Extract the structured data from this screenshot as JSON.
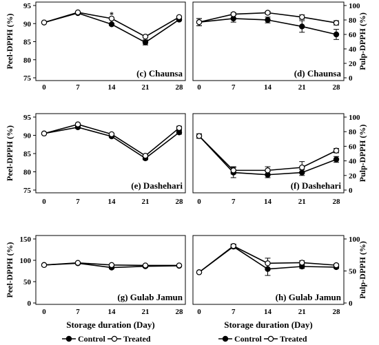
{
  "chart_data": [
    {
      "panel": "c",
      "type": "line",
      "label": "(c) Chaunsa",
      "ylabel": "Peel-DPPH (%)",
      "x": [
        0,
        7,
        14,
        21,
        28
      ],
      "ylim": [
        75,
        95
      ],
      "yticks": [
        75,
        80,
        85,
        90,
        95
      ],
      "series": [
        {
          "name": "Control",
          "values": [
            90.3,
            92.9,
            89.8,
            84.8,
            91.1
          ],
          "err": [
            0,
            0.2,
            0.3,
            0.7,
            0.3
          ]
        },
        {
          "name": "Treated",
          "values": [
            90.3,
            93.1,
            91.4,
            86.4,
            91.8
          ],
          "err": [
            0,
            0.2,
            0.2,
            0.3,
            0.3
          ]
        }
      ],
      "annotations": [
        {
          "text": "*",
          "x": 14,
          "y": 92.5
        }
      ]
    },
    {
      "panel": "d",
      "type": "line",
      "label": "(d) Chaunsa",
      "ylabel": "Pulp-DPPH (%)",
      "x": [
        0,
        7,
        14,
        21,
        28
      ],
      "ylim": [
        0,
        100
      ],
      "yticks": [
        0,
        20,
        40,
        60,
        80,
        100
      ],
      "series": [
        {
          "name": "Control",
          "values": [
            77,
            82,
            80,
            71,
            60
          ],
          "err": [
            5,
            5,
            4,
            8,
            7
          ]
        },
        {
          "name": "Treated",
          "values": [
            77,
            88,
            90,
            84,
            76
          ],
          "err": [
            5,
            2,
            2,
            3,
            3
          ]
        }
      ]
    },
    {
      "panel": "e",
      "type": "line",
      "label": "(e) Dashehari",
      "ylabel": "Peel-DPPH (%)",
      "x": [
        0,
        7,
        14,
        21,
        28
      ],
      "ylim": [
        75,
        95
      ],
      "yticks": [
        75,
        80,
        85,
        90,
        95
      ],
      "series": [
        {
          "name": "Control",
          "values": [
            90.5,
            92.2,
            89.7,
            83.7,
            90.8
          ],
          "err": [
            0,
            0.3,
            0.3,
            0.4,
            0.5
          ]
        },
        {
          "name": "Treated",
          "values": [
            90.5,
            93.0,
            90.3,
            84.4,
            92.0
          ],
          "err": [
            0,
            0.3,
            0.3,
            0.3,
            0.5
          ]
        }
      ]
    },
    {
      "panel": "f",
      "type": "line",
      "label": "(f) Dashehari",
      "ylabel": "Pulp-DPPH (%)",
      "x": [
        0,
        7,
        14,
        21,
        28
      ],
      "ylim": [
        0,
        100
      ],
      "yticks": [
        0,
        20,
        40,
        60,
        80,
        100
      ],
      "series": [
        {
          "name": "Control",
          "values": [
            74,
            24,
            21,
            24,
            42
          ],
          "err": [
            3,
            7,
            4,
            4,
            4
          ]
        },
        {
          "name": "Treated",
          "values": [
            74,
            27,
            27,
            31,
            54
          ],
          "err": [
            3,
            5,
            5,
            8,
            3
          ]
        }
      ]
    },
    {
      "panel": "g",
      "type": "line",
      "label": "(g) Gulab Jamun",
      "ylabel": "Peel-DPPH (%)",
      "xlabel": "Storage duration (Day)",
      "x": [
        0,
        7,
        14,
        21,
        28
      ],
      "ylim": [
        0,
        150
      ],
      "yticks": [
        0,
        50,
        100,
        150
      ],
      "series": [
        {
          "name": "Control",
          "values": [
            89,
            93,
            83,
            86,
            87
          ],
          "err": [
            0,
            2,
            3,
            3,
            2
          ]
        },
        {
          "name": "Treated",
          "values": [
            89,
            94,
            89,
            88,
            88
          ],
          "err": [
            0,
            2,
            2,
            2,
            2
          ]
        }
      ]
    },
    {
      "panel": "h",
      "type": "line",
      "label": "(h) Gulab Jamun",
      "ylabel": "Pulp-DPPH (%)",
      "xlabel": "Storage duration (Day)",
      "x": [
        0,
        7,
        14,
        21,
        28
      ],
      "ylim": [
        0,
        100
      ],
      "yticks": [
        0,
        50,
        100
      ],
      "series": [
        {
          "name": "Control",
          "values": [
            48,
            88,
            53,
            57,
            56
          ],
          "err": [
            0,
            3,
            10,
            3,
            2
          ]
        },
        {
          "name": "Treated",
          "values": [
            48,
            89,
            62,
            63,
            59
          ],
          "err": [
            0,
            3,
            8,
            3,
            2
          ]
        }
      ]
    }
  ],
  "legend": {
    "items": [
      {
        "name": "Control",
        "marker": "filled-circle"
      },
      {
        "name": "Treated",
        "marker": "open-circle"
      }
    ]
  },
  "colors": {
    "control": "#000000",
    "treated": "#ffffff",
    "line": "#000000"
  }
}
